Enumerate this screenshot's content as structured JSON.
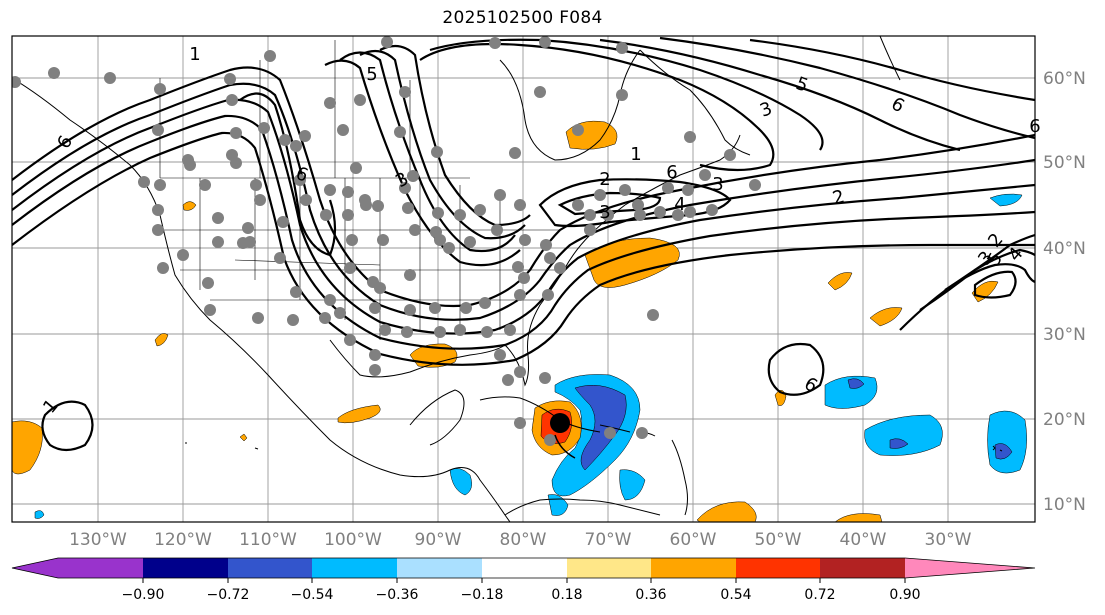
{
  "title": "2025102500 F084",
  "lon_ticks": [
    "130°W",
    "120°W",
    "110°W",
    "100°W",
    "90°W",
    "80°W",
    "70°W",
    "60°W",
    "50°W",
    "40°W",
    "30°W"
  ],
  "lat_ticks": [
    "10°N",
    "20°N",
    "30°N",
    "40°N",
    "50°N",
    "60°N"
  ],
  "colorbar": {
    "ticks": [
      "−0.90",
      "−0.72",
      "−0.54",
      "−0.36",
      "−0.18",
      "0.18",
      "0.36",
      "0.54",
      "0.72",
      "0.90"
    ],
    "colors": [
      "#9933cc",
      "#00008b",
      "#3355cc",
      "#00bbff",
      "#aae0ff",
      "#ffffff",
      "#ffe788",
      "#ffa500",
      "#ff3300",
      "#b22222",
      "#ff88bb"
    ]
  },
  "contour_labels": [
    "5",
    "3",
    "6",
    "6",
    "1",
    "5",
    "3",
    "6",
    "2",
    "6",
    "2",
    "5",
    "4",
    "6",
    "3",
    "1",
    "1",
    "6",
    "3",
    "2",
    "3",
    "4"
  ],
  "storm_marker": "storm-center"
}
